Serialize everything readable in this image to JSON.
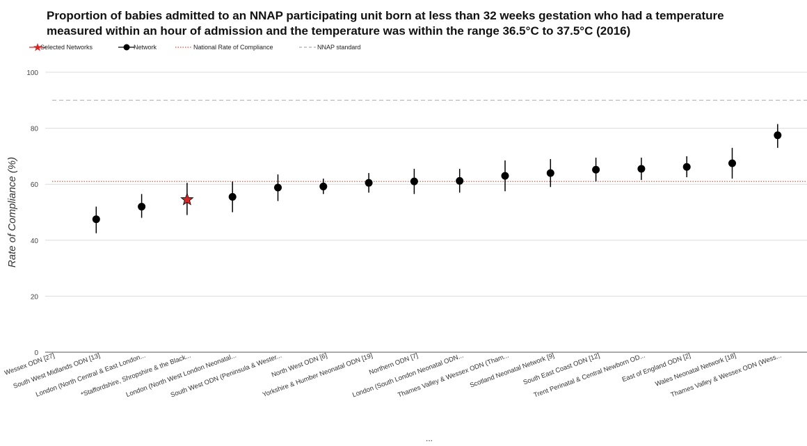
{
  "chart_data": {
    "type": "scatter",
    "title": [
      "Proportion of babies admitted to an NNAP participating unit born at less than 32 weeks gestation who had a temperature",
      "measured within an hour of admission and the temperature was within the range 36.5°C to 37.5°C (2016)"
    ],
    "ylabel": "Rate of Compliance (%)",
    "xlabel": "",
    "ylim": [
      0,
      100
    ],
    "yticks": [
      0,
      20,
      40,
      60,
      80,
      100
    ],
    "grid": true,
    "legend_position": "top-left",
    "legend": [
      {
        "label": "Selected Networks",
        "marker": "star",
        "color": "#d62728"
      },
      {
        "label": "Network",
        "marker": "circle-line",
        "color": "#000000"
      },
      {
        "label": "National Rate of Compliance",
        "marker": "dotted-line",
        "color": "#e0443a"
      },
      {
        "label": "NNAP standard",
        "marker": "dashed-line",
        "color": "#bbbbbb"
      }
    ],
    "national_rate": 61,
    "nnap_standard": 90,
    "categories": [
      "Wessex ODN [27]",
      "South West Midlands ODN [13]",
      "London (North Central & East London...",
      "*Staffordshire, Shropshire & the Black...",
      "London (North West London Neonatal...",
      "South West ODN (Peninsula & Wester...",
      "North West ODN [6]",
      "Yorkshire & Humber Neonatal ODN [19]",
      "Northern ODN [7]",
      "London (South London Neonatal ODN...",
      "Thames Valley & Wessex ODN (Tham...",
      "Scotland Neonatal Network [9]",
      "South East Coast ODN [12]",
      "Trent Perinatal & Central Newborn OD...",
      "East of England ODN [2]",
      "Wales Neonatal Network [18]",
      "Thames Valley & Wessex ODN (Wess..."
    ],
    "values": [
      null,
      47.5,
      52,
      54.5,
      55.5,
      58.8,
      59.2,
      60.5,
      61,
      61.2,
      63,
      64,
      65.2,
      65.5,
      66.2,
      67.5,
      77.5
    ],
    "ci_low": [
      null,
      42.5,
      48,
      49,
      50,
      54,
      56.5,
      57,
      56.5,
      57,
      57.5,
      59,
      61,
      61.5,
      62.5,
      62,
      73
    ],
    "ci_high": [
      null,
      52,
      56.5,
      60.5,
      61,
      63.5,
      62,
      64,
      65.5,
      65.5,
      68.5,
      69,
      69.5,
      69.5,
      70,
      73,
      81.5
    ],
    "selected": [
      false,
      false,
      false,
      true,
      false,
      false,
      false,
      false,
      false,
      false,
      false,
      false,
      false,
      false,
      false,
      false,
      false
    ],
    "ellipsis": "..."
  }
}
